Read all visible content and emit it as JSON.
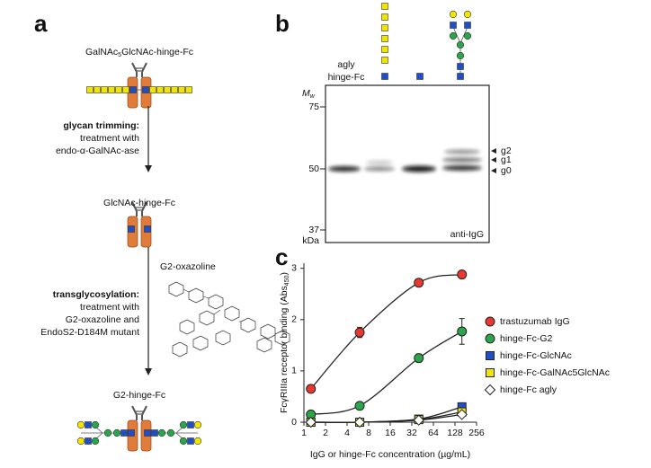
{
  "panel_a": {
    "label": "a",
    "top": {
      "pre": "GalNAc",
      "sub": "5",
      "post": "GlcNAc-hinge-Fc"
    },
    "step1": [
      "glycan trimming:",
      "treatment with",
      "endo-α-GalNAc-ase"
    ],
    "middle": "GlcNAc-hinge-Fc",
    "reagent": "G2-oxazoline",
    "step2": [
      "transglycosylation:",
      "treatment with",
      "G2-oxazoline and",
      "EndoS2-D184M mutant"
    ],
    "bottom": "G2-hinge-Fc"
  },
  "panel_b": {
    "label": "b",
    "lane1": [
      "agly",
      "hinge-Fc"
    ],
    "mw": {
      "main": "M",
      "sub": "w"
    },
    "markers": [
      "75",
      "50",
      "37"
    ],
    "unit": "kDa",
    "blot": "anti-IgG",
    "bands": [
      "g2",
      "g1",
      "g0"
    ]
  },
  "chart_data": {
    "type": "line",
    "label": "c",
    "xlabel": "IgG or hinge-Fc concentration (µg/mL)",
    "ylabel": {
      "pre": "FcγRIIIa receptor binding (Abs",
      "sub": "450",
      "post": ")"
    },
    "x": [
      1.25,
      6,
      40,
      160
    ],
    "xscale": "log2",
    "xlim": [
      1,
      256
    ],
    "xticks": [
      1,
      2,
      4,
      8,
      16,
      32,
      64,
      128,
      256
    ],
    "ylim": [
      0,
      3.1
    ],
    "yticks": [
      0,
      1,
      2,
      3
    ],
    "series": [
      {
        "name": "trastuzumab IgG",
        "color": "#e8382f",
        "marker": "circle",
        "values": [
          0.65,
          1.75,
          2.72,
          2.88
        ],
        "errors": [
          0.03,
          0.1,
          0.07,
          0.04
        ]
      },
      {
        "name": "hinge-Fc-G2",
        "color": "#2aa64a",
        "marker": "circle",
        "values": [
          0.15,
          0.32,
          1.25,
          1.77
        ],
        "errors": [
          0.02,
          0.03,
          0.08,
          0.25
        ]
      },
      {
        "name": "hinge-Fc-GlcNAc",
        "color": "#1f4fc8",
        "marker": "square",
        "values": [
          0,
          0,
          0.06,
          0.3
        ],
        "errors": [
          0.01,
          0.01,
          0.02,
          0.04
        ]
      },
      {
        "name": "hinge-Fc-GalNAc5GlcNAc",
        "color": "#f2e600",
        "marker": "square",
        "values": [
          0,
          0,
          0.05,
          0.2
        ],
        "errors": [
          0.01,
          0.01,
          0.02,
          0.03
        ]
      },
      {
        "name": "hinge-Fc agly",
        "color": "#ffffff",
        "marker": "diamond",
        "values": [
          0,
          0,
          0.04,
          0.15
        ],
        "errors": [
          0.01,
          0.01,
          0.02,
          0.03
        ]
      }
    ]
  }
}
